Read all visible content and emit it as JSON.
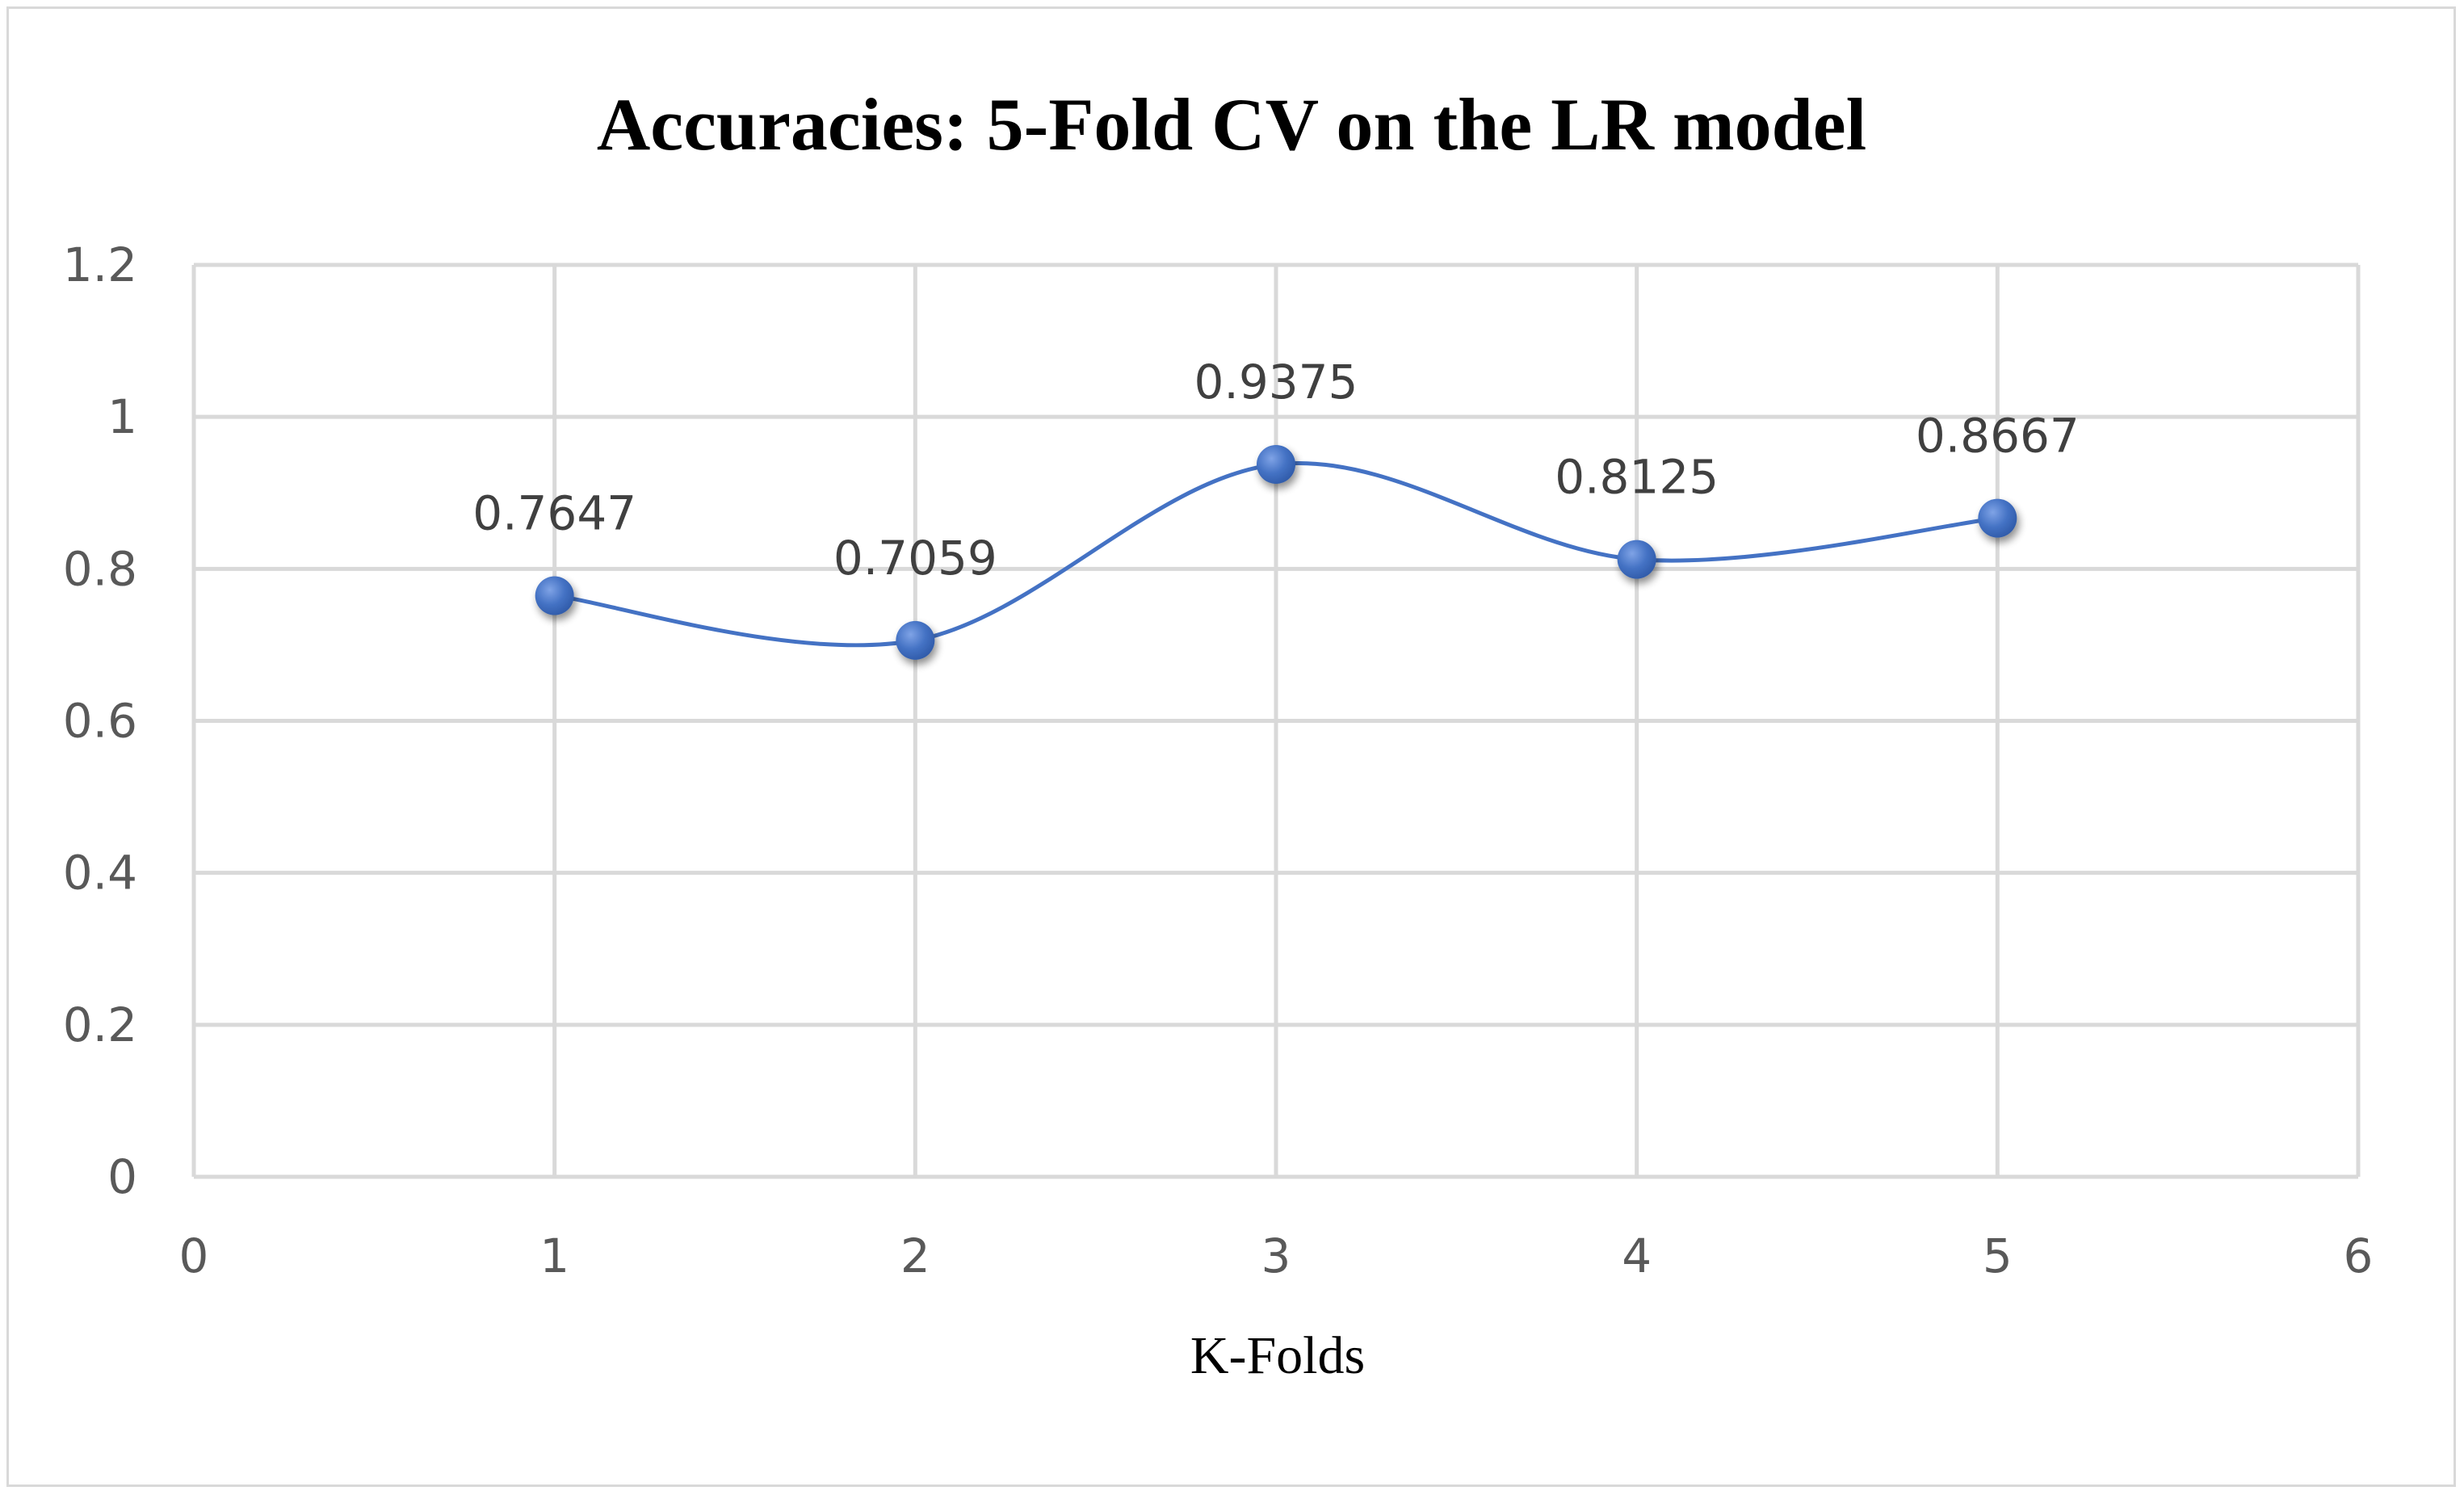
{
  "chart_data": {
    "type": "scatter",
    "title": "Accuracies: 5-Fold CV on the LR model",
    "xlabel": "K-Folds",
    "ylabel": "",
    "xlim": [
      0,
      6
    ],
    "ylim": [
      0,
      1.2
    ],
    "x_ticks": [
      "0",
      "1",
      "2",
      "3",
      "4",
      "5",
      "6"
    ],
    "y_ticks": [
      "0",
      "0.2",
      "0.4",
      "0.6",
      "0.8",
      "1",
      "1.2"
    ],
    "grid": true,
    "smoothed_line": true,
    "series": [
      {
        "x": [
          1,
          2,
          3,
          4,
          5
        ],
        "y": [
          0.7647,
          0.7059,
          0.9375,
          0.8125,
          0.8667
        ],
        "data_labels": [
          "0.7647",
          "0.7059",
          "0.9375",
          "0.8125",
          "0.8667"
        ]
      }
    ],
    "colors": {
      "series": "#4472c4",
      "marker": "#4472c4",
      "grid": "#d9d9d9"
    }
  }
}
